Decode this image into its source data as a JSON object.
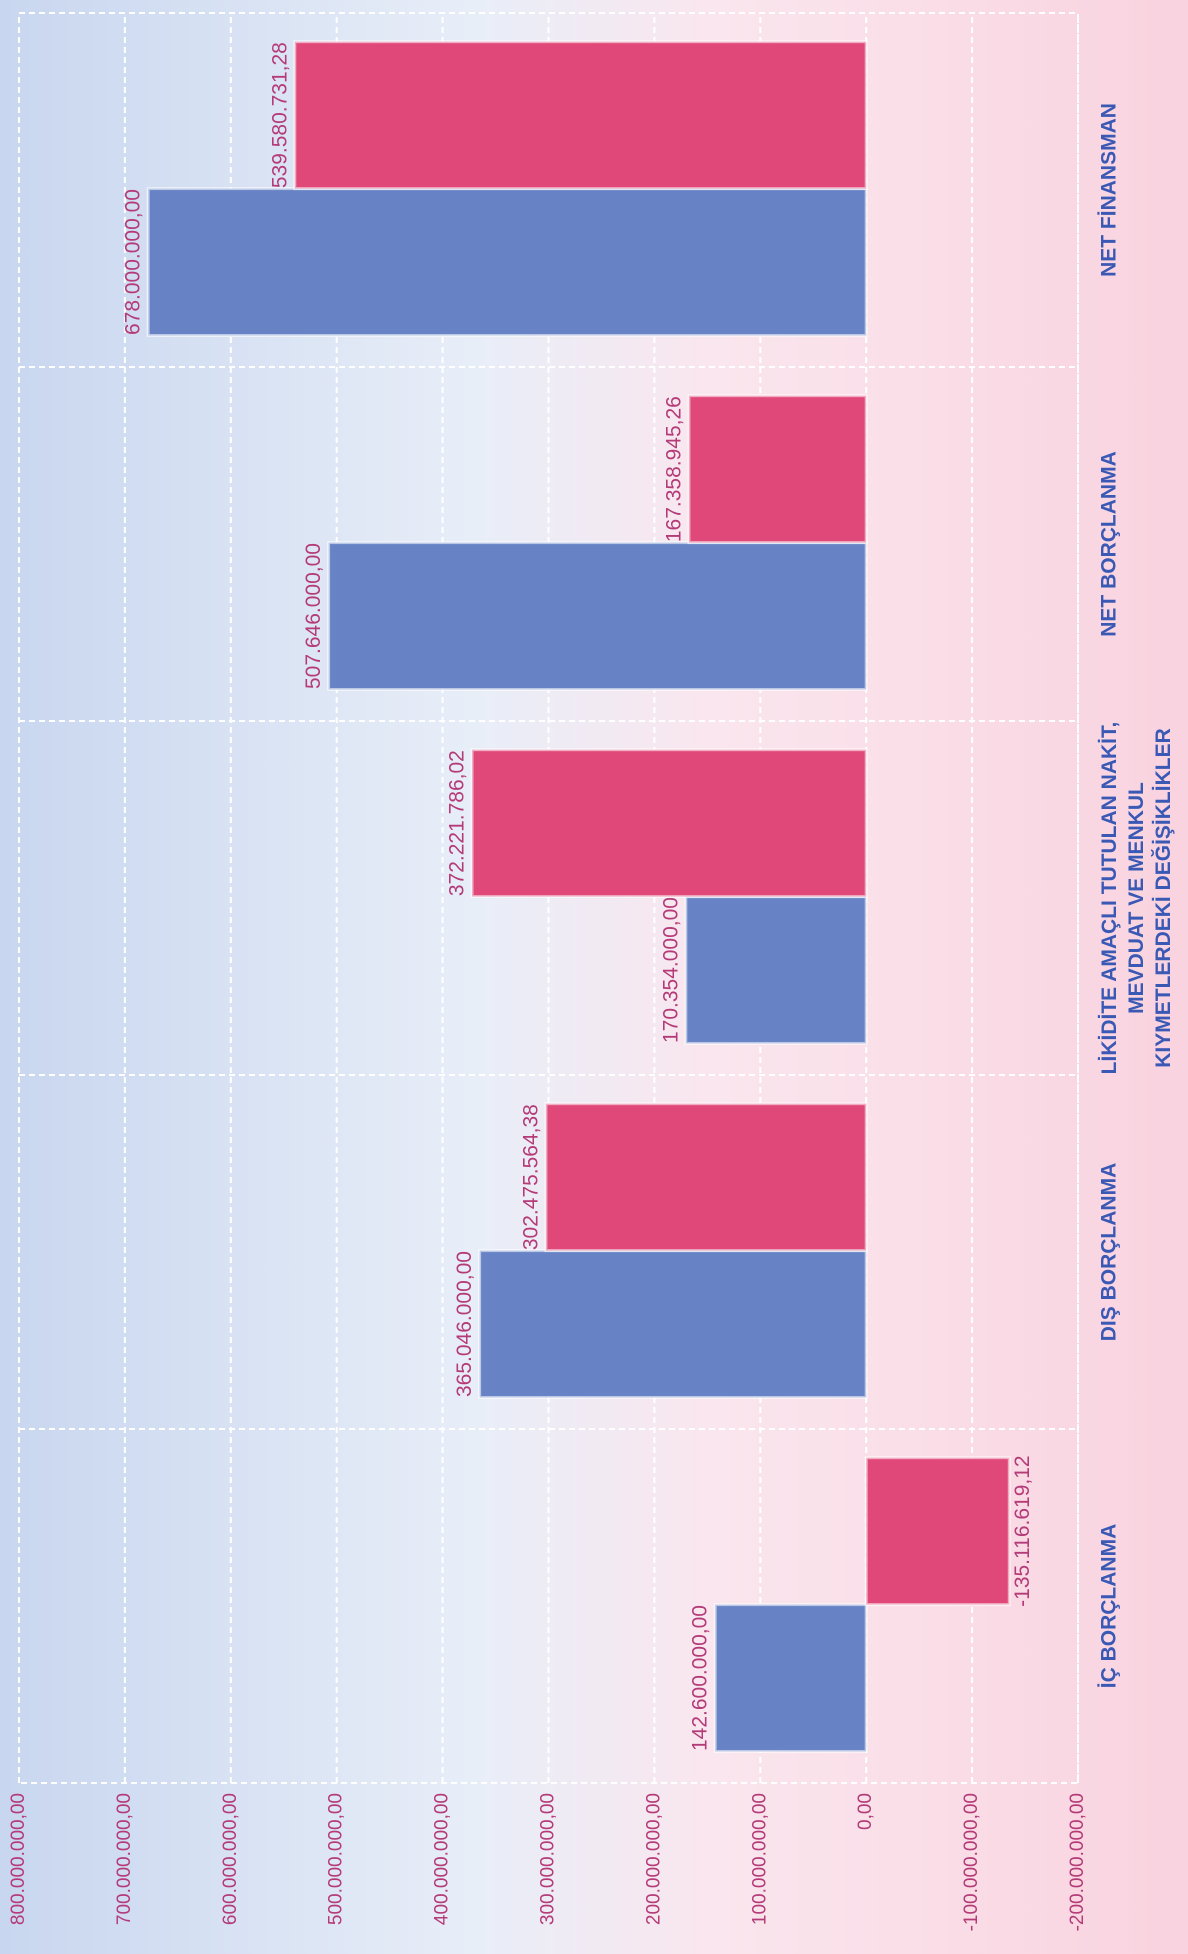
{
  "chart_data": {
    "type": "bar",
    "categories": [
      "İÇ BORÇLANMA",
      "DIŞ BORÇLANMA",
      "LİKİDİTE AMAÇLI TUTULAN NAKİT,\nMEVDUAT VE MENKUL\nKIYMETLERDEKİ DEĞİŞİKLİKLER",
      "NET BORÇLANMA",
      "NET FİNANSMAN"
    ],
    "series": [
      {
        "color": "#6783c6",
        "values": [
          142600000,
          365046000,
          170354000,
          507646000,
          678000000
        ],
        "value_labels": [
          "142.600.000,00",
          "365.046.000,00",
          "170.354.000,00",
          "507.646.000,00",
          "678.000.000,00"
        ]
      },
      {
        "color": "#df4878",
        "values": [
          -135116619.12,
          302475564.38,
          372221786.02,
          167358945.26,
          539580731.28
        ],
        "value_labels": [
          "-135.116.619,12",
          "302.475.564,38",
          "372.221.786,02",
          "167.358.945,26",
          "539.580.731,28"
        ]
      }
    ],
    "ylim": [
      -200000000,
      800000000
    ],
    "yticks": [
      {
        "value": -200000000,
        "label": "-200.000.000,00"
      },
      {
        "value": -100000000,
        "label": "-100.000.000,00"
      },
      {
        "value": 0,
        "label": "0,00"
      },
      {
        "value": 100000000,
        "label": "100.000.000,00"
      },
      {
        "value": 200000000,
        "label": "200.000.000,00"
      },
      {
        "value": 300000000,
        "label": "300.000.000,00"
      },
      {
        "value": 400000000,
        "label": "400.000.000,00"
      },
      {
        "value": 500000000,
        "label": "500.000.000,00"
      },
      {
        "value": 600000000,
        "label": "600.000.000,00"
      },
      {
        "value": 700000000,
        "label": "700.000.000,00"
      },
      {
        "value": 800000000,
        "label": "800.000.000,00"
      }
    ],
    "grid": true
  }
}
